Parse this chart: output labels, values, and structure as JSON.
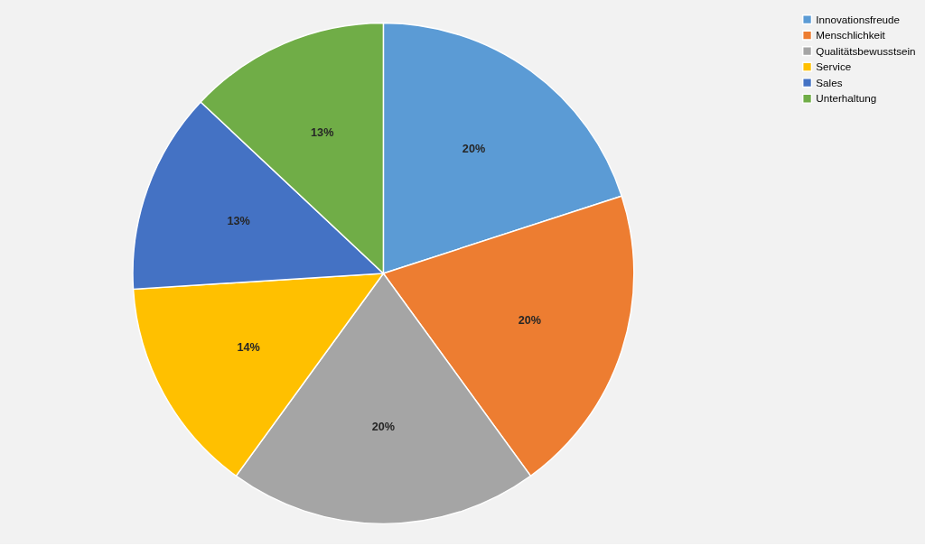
{
  "chart_data": {
    "type": "pie",
    "categories": [
      "Innovationsfreude",
      "Menschlichkeit",
      "Qualitätsbewusstsein",
      "Service",
      "Sales",
      "Unterhaltung"
    ],
    "values": [
      20,
      20,
      20,
      14,
      13,
      13
    ],
    "colors": [
      "#5b9bd5",
      "#ed7d31",
      "#a5a5a5",
      "#ffc000",
      "#4472c4",
      "#70ad47"
    ],
    "value_labels": [
      "20%",
      "20%",
      "20%",
      "14%",
      "13%",
      "13%"
    ],
    "legend": "right"
  }
}
